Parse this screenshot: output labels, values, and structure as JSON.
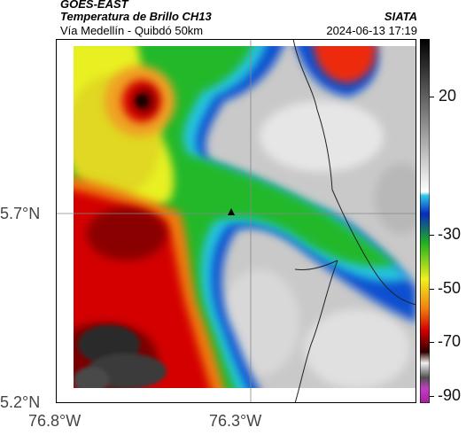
{
  "header": {
    "satellite": "GOES-EAST",
    "product": "Temperatura de Brillo CH13",
    "region": "Vía Medellín - Quibdó 50km",
    "org": "SIATA",
    "datetime": "2024-06-13 17:19"
  },
  "axes": {
    "lat_ticks": [
      "5.7°N",
      "5.2°N"
    ],
    "lon_ticks": [
      "76.8°W",
      "76.3°W"
    ]
  },
  "colorbar": {
    "ticks": [
      "20",
      "-30",
      "-50",
      "-70",
      "-90"
    ]
  },
  "colors": {
    "warm_ground": "#c9c9c9",
    "cold_cloud": "#d40000",
    "coldest": "#1a1a1a"
  },
  "map": {
    "marker": "city-marker"
  }
}
